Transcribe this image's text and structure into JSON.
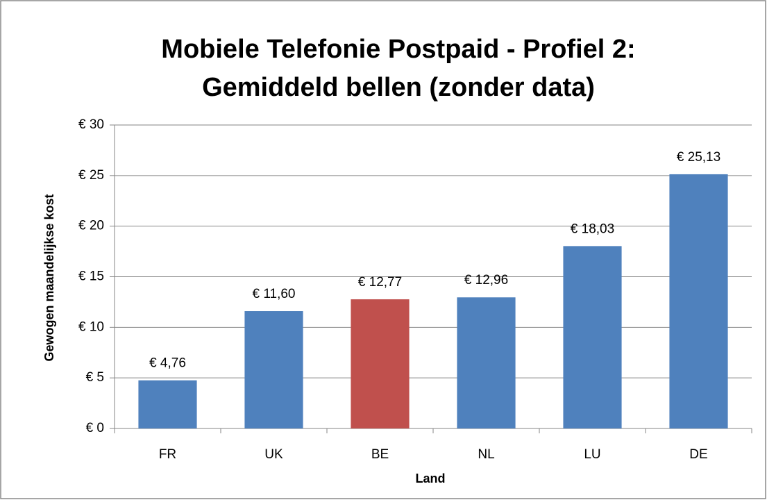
{
  "chart_data": {
    "type": "bar",
    "title": [
      "Mobiele Telefonie Postpaid - Profiel 2:",
      "Gemiddeld bellen (zonder data)"
    ],
    "x_label": "Land",
    "y_label": "Gewogen maandelijkse kost",
    "categories": [
      "FR",
      "UK",
      "BE",
      "NL",
      "LU",
      "DE"
    ],
    "values": [
      4.76,
      11.6,
      12.77,
      12.96,
      18.03,
      25.13
    ],
    "value_labels": [
      "€ 4,76",
      "€ 11,60",
      "€ 12,77",
      "€ 12,96",
      "€ 18,03",
      "€ 25,13"
    ],
    "colors": [
      "#4f81bd",
      "#4f81bd",
      "#c0504d",
      "#4f81bd",
      "#4f81bd",
      "#4f81bd"
    ],
    "ylim": [
      0,
      30
    ],
    "yticks": [
      {
        "value": 0,
        "label": "€ 0"
      },
      {
        "value": 5,
        "label": "€ 5"
      },
      {
        "value": 10,
        "label": "€ 10"
      },
      {
        "value": 15,
        "label": "€ 15"
      },
      {
        "value": 20,
        "label": "€ 20"
      },
      {
        "value": 25,
        "label": "€ 25"
      },
      {
        "value": 30,
        "label": "€ 30"
      }
    ],
    "grid": true
  }
}
